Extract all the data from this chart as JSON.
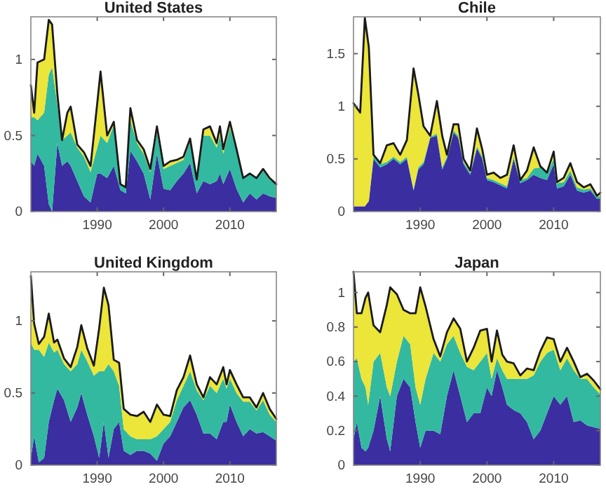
{
  "chart_data": [
    {
      "type": "area",
      "stacked": true,
      "title": "United States",
      "x": [
        1980,
        1980.5,
        1981,
        1982,
        1982.7,
        1983.2,
        1984,
        1984.7,
        1985.5,
        1986,
        1987,
        1988,
        1989,
        1990,
        1990.5,
        1991.5,
        1992.5,
        1993.5,
        1994.3,
        1995,
        1996,
        1997,
        1998,
        1999,
        2000,
        2001,
        2002,
        2003,
        2004,
        2005,
        2006,
        2007,
        2008,
        2008.5,
        2009,
        2010,
        2011,
        2012,
        2013,
        2014,
        2015,
        2016,
        2017
      ],
      "xlim": [
        1980,
        2017
      ],
      "xticks": [
        1990,
        2000,
        2010
      ],
      "ylim": [
        0,
        1.28
      ],
      "yticks": [
        0,
        0.5,
        1
      ],
      "series": [
        {
          "color": "#3b2ea0",
          "values": [
            0.33,
            0.3,
            0.38,
            0.3,
            0.05,
            0.0,
            0.45,
            0.3,
            0.33,
            0.3,
            0.2,
            0.1,
            0.06,
            0.25,
            0.25,
            0.22,
            0.3,
            0.14,
            0.12,
            0.4,
            0.33,
            0.25,
            0.08,
            0.38,
            0.15,
            0.14,
            0.2,
            0.25,
            0.32,
            0.12,
            0.2,
            0.18,
            0.2,
            0.25,
            0.18,
            0.28,
            0.15,
            0.06,
            0.12,
            0.08,
            0.12,
            0.1,
            0.09
          ]
        },
        {
          "color": "#33b9a0",
          "values": [
            0.29,
            0.32,
            0.22,
            0.35,
            0.85,
            0.95,
            0.25,
            0.17,
            0.17,
            0.22,
            0.22,
            0.26,
            0.2,
            0.17,
            0.25,
            0.23,
            0.27,
            0.04,
            0.04,
            0.2,
            0.12,
            0.13,
            0.18,
            0.14,
            0.13,
            0.16,
            0.12,
            0.09,
            0.14,
            0.08,
            0.3,
            0.32,
            0.22,
            0.25,
            0.2,
            0.27,
            0.25,
            0.16,
            0.13,
            0.14,
            0.15,
            0.11,
            0.09
          ]
        },
        {
          "color": "#ece53a",
          "values": [
            0.21,
            0.03,
            0.38,
            0.35,
            0.36,
            0.28,
            0.07,
            0,
            0.15,
            0.17,
            0.02,
            0.03,
            0.04,
            0.29,
            0.42,
            0.05,
            0.02,
            0,
            0,
            0.08,
            0.02,
            0.03,
            0.02,
            0.04,
            0.02,
            0.03,
            0.02,
            0.02,
            0.02,
            0.01,
            0.04,
            0.06,
            0.03,
            0.06,
            0.03,
            0.04,
            0.01,
            0,
            0,
            0,
            0.01,
            0.01,
            0
          ]
        }
      ]
    },
    {
      "type": "area",
      "stacked": true,
      "title": "Chile",
      "x": [
        1980,
        1981,
        1981.7,
        1982.3,
        1983,
        1984,
        1985,
        1986,
        1987,
        1988,
        1989,
        1989.7,
        1990.5,
        1991.5,
        1992.5,
        1993.3,
        1994,
        1995,
        1995.7,
        1996.5,
        1997.5,
        1998.5,
        1999.3,
        2000,
        2001,
        2002,
        2003,
        2004,
        2005,
        2006,
        2007,
        2008,
        2009,
        2010,
        2010.5,
        2011.5,
        2012.5,
        2013.5,
        2014.5,
        2015.5,
        2016.5,
        2017
      ],
      "xlim": [
        1980,
        2017
      ],
      "xticks": [
        1990,
        2000,
        2010
      ],
      "ylim": [
        0,
        1.85
      ],
      "yticks": [
        0,
        0.5,
        1,
        1.5
      ],
      "series": [
        {
          "color": "#3b2ea0",
          "values": [
            0.05,
            0.05,
            0.05,
            0.1,
            0.5,
            0.42,
            0.45,
            0.5,
            0.45,
            0.5,
            0.2,
            0.4,
            0.45,
            0.7,
            0.72,
            0.4,
            0.5,
            0.75,
            0.7,
            0.45,
            0.35,
            0.6,
            0.5,
            0.3,
            0.28,
            0.25,
            0.22,
            0.5,
            0.27,
            0.3,
            0.35,
            0.32,
            0.3,
            0.45,
            0.22,
            0.24,
            0.35,
            0.2,
            0.18,
            0.2,
            0.12,
            0.12
          ]
        },
        {
          "color": "#33b9a0",
          "values": [
            0,
            0,
            0,
            0,
            0.03,
            0.03,
            0.02,
            0.02,
            0.02,
            0.02,
            0.01,
            0.02,
            0.02,
            0.01,
            0.02,
            0.02,
            0.02,
            0.02,
            0.02,
            0.02,
            0.02,
            0.02,
            0.02,
            0.02,
            0.02,
            0.02,
            0.02,
            0.02,
            0.03,
            0.02,
            0.06,
            0.1,
            0.06,
            0.05,
            0.05,
            0.04,
            0.04,
            0.03,
            0.03,
            0.02,
            0.02,
            0.02
          ]
        },
        {
          "color": "#ece53a",
          "values": [
            0.98,
            0.89,
            1.79,
            1.46,
            0.01,
            0.01,
            0.16,
            0.13,
            0.07,
            0.16,
            1.15,
            0.7,
            0.34,
            0.01,
            0.31,
            0.3,
            0.02,
            0.06,
            0.11,
            0.03,
            0.02,
            0.17,
            0.07,
            0.03,
            0.07,
            0.05,
            0.11,
            0.11,
            0,
            0.07,
            0.2,
            0.01,
            0.01,
            0.07,
            0.01,
            0.04,
            0.07,
            0.05,
            0.02,
            0.04,
            0.01,
            0.04
          ]
        }
      ]
    },
    {
      "type": "area",
      "stacked": true,
      "title": "United Kingdom",
      "x": [
        1980,
        1980.5,
        1981.2,
        1982,
        1982.7,
        1983.5,
        1984,
        1985,
        1986,
        1987,
        1987.6,
        1988.5,
        1989.5,
        1990.3,
        1991,
        1991.7,
        1992.5,
        1993.3,
        1994,
        1995,
        1996,
        1997,
        1998,
        1999,
        2000,
        2001,
        2002,
        2003,
        2004,
        2005,
        2006,
        2007,
        2008,
        2009,
        2009.5,
        2010,
        2011,
        2012,
        2013,
        2014,
        2015,
        2016,
        2017
      ],
      "xlim": [
        1980,
        2017
      ],
      "xticks": [
        1990,
        2000,
        2010
      ],
      "ylim": [
        0,
        1.34
      ],
      "yticks": [
        0,
        0.5,
        1
      ],
      "series": [
        {
          "color": "#3b2ea0",
          "values": [
            0.05,
            0.2,
            0.02,
            0.05,
            0.3,
            0.45,
            0.53,
            0.45,
            0.3,
            0.4,
            0.5,
            0.35,
            0.2,
            0.05,
            0.3,
            0.05,
            0.25,
            0.3,
            0.1,
            0.07,
            0.1,
            0.1,
            0.08,
            0.03,
            0.15,
            0.2,
            0.3,
            0.4,
            0.45,
            0.35,
            0.22,
            0.22,
            0.18,
            0.3,
            0.3,
            0.42,
            0.3,
            0.2,
            0.25,
            0.22,
            0.23,
            0.2,
            0.17
          ]
        },
        {
          "color": "#33b9a0",
          "values": [
            0.8,
            0.6,
            0.78,
            0.7,
            0.55,
            0.33,
            0.27,
            0.25,
            0.35,
            0.3,
            0.3,
            0.37,
            0.42,
            0.6,
            0.35,
            0.65,
            0.4,
            0.25,
            0.15,
            0.13,
            0.08,
            0.08,
            0.1,
            0.17,
            0.1,
            0.1,
            0.15,
            0.15,
            0.2,
            0.17,
            0.23,
            0.33,
            0.32,
            0.3,
            0.23,
            0.18,
            0.2,
            0.24,
            0.19,
            0.16,
            0.22,
            0.15,
            0.13
          ]
        },
        {
          "color": "#ece53a",
          "values": [
            0.46,
            0.18,
            0.04,
            0.14,
            0.2,
            0.07,
            0.07,
            0.04,
            0.03,
            0.12,
            0.17,
            0.09,
            0.07,
            0.3,
            0.58,
            0.41,
            0.08,
            0.16,
            0.14,
            0.15,
            0.16,
            0.19,
            0.12,
            0.22,
            0.1,
            0.04,
            0.07,
            0.06,
            0.11,
            0.04,
            0.02,
            0.06,
            0.06,
            0.08,
            0.03,
            0.06,
            0.06,
            0.03,
            0.03,
            0.02,
            0.05,
            0.04,
            0.02
          ]
        }
      ]
    },
    {
      "type": "area",
      "stacked": true,
      "title": "Japan",
      "x": [
        1980,
        1980.5,
        1981.2,
        1981.8,
        1982.2,
        1983,
        1984,
        1985,
        1985.5,
        1986.5,
        1987.5,
        1988.5,
        1989.3,
        1990,
        1990.8,
        1992,
        1993,
        1994,
        1995,
        1996,
        1997,
        1998,
        1999,
        2000,
        2000.7,
        2001.5,
        2002.3,
        2003,
        2004,
        2005,
        2006,
        2007,
        2008,
        2009,
        2010,
        2011,
        2012,
        2013,
        2014,
        2015,
        2016,
        2017
      ],
      "xlim": [
        1980,
        2017
      ],
      "xticks": [
        1990,
        2000,
        2010
      ],
      "ylim": [
        0,
        1.12
      ],
      "yticks": [
        0,
        0.2,
        0.4,
        0.6,
        0.8,
        1
      ],
      "series": [
        {
          "color": "#3b2ea0",
          "values": [
            0.15,
            0.25,
            0.1,
            0.08,
            0.1,
            0.2,
            0.4,
            0.15,
            0.08,
            0.4,
            0.5,
            0.45,
            0.25,
            0.1,
            0.2,
            0.2,
            0.18,
            0.4,
            0.55,
            0.4,
            0.25,
            0.3,
            0.3,
            0.45,
            0.4,
            0.55,
            0.45,
            0.35,
            0.32,
            0.3,
            0.25,
            0.15,
            0.2,
            0.3,
            0.4,
            0.35,
            0.4,
            0.25,
            0.26,
            0.23,
            0.22,
            0.21
          ]
        },
        {
          "color": "#33b9a0",
          "values": [
            0.45,
            0.37,
            0.4,
            0.37,
            0.25,
            0.4,
            0.25,
            0.3,
            0.32,
            0.2,
            0.25,
            0.25,
            0.2,
            0.25,
            0.3,
            0.45,
            0.42,
            0.3,
            0.2,
            0.25,
            0.32,
            0.25,
            0.3,
            0.2,
            0.1,
            0.07,
            0.1,
            0.15,
            0.18,
            0.2,
            0.25,
            0.37,
            0.4,
            0.35,
            0.27,
            0.2,
            0.22,
            0.3,
            0.24,
            0.27,
            0.23,
            0.2
          ]
        },
        {
          "color": "#ece53a",
          "values": [
            0.52,
            0.26,
            0.38,
            0.52,
            0.65,
            0.21,
            0.12,
            0.48,
            0.63,
            0.39,
            0.15,
            0.18,
            0.43,
            0.68,
            0.42,
            0.08,
            0.03,
            0.07,
            0.1,
            0.14,
            0.03,
            0.13,
            0.18,
            0.14,
            0.1,
            0.16,
            0.09,
            0.1,
            0.09,
            0.02,
            0.06,
            0.03,
            0.06,
            0.09,
            0.06,
            0.05,
            0.06,
            0.05,
            0.01,
            0.03,
            0.04,
            0.03
          ]
        }
      ]
    }
  ]
}
